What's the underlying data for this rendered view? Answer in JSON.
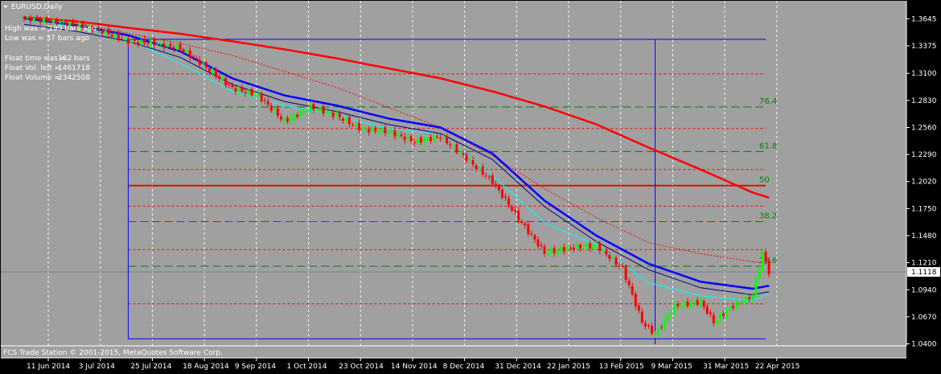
{
  "window": {
    "title": "EURUSD,Daily"
  },
  "info": {
    "high_line": "High was = 199 bars ago",
    "low_line": "Low was = 37 bars ago",
    "float_time_label": "Float time was =",
    "float_time_value": "162 bars",
    "float_vol_label": "Float Vol. left =",
    "float_vol_value": "1461718",
    "float_volume_label": "Float Volume =",
    "float_volume_value": "2342508"
  },
  "footer": "FCS Trade Station © 2001-2015, MetaQuotes Software Corp.",
  "colors": {
    "background": "#000000",
    "plot_bg": "#a0a0a0",
    "ma_fast": "#0000ff",
    "ma_slow": "#ff0000",
    "candle_up": "#00ff00",
    "candle_down": "#ff0000",
    "fib_line": "#008000",
    "float_line": "#ff0000",
    "box_line": "#0000ff"
  },
  "chart_data": {
    "type": "candlestick",
    "symbol": "EURUSD",
    "timeframe": "Daily",
    "y_ticks": [
      "1.3645",
      "1.3375",
      "1.3100",
      "1.2830",
      "1.2560",
      "1.2290",
      "1.2020",
      "1.1750",
      "1.1480",
      "1.1210",
      "1.0940",
      "1.0670",
      "1.0400"
    ],
    "y_tick_values": [
      1.3645,
      1.3375,
      1.31,
      1.283,
      1.256,
      1.229,
      1.202,
      1.175,
      1.148,
      1.121,
      1.094,
      1.067,
      1.04
    ],
    "ylim": [
      1.038,
      1.372
    ],
    "current_price": "1.1118",
    "current_price_value": 1.1118,
    "x_ticks": [
      "11 Jun 2014",
      "3 Jul 2014",
      "25 Jul 2014",
      "18 Aug 2014",
      "9 Sep 2014",
      "1 Oct 2014",
      "23 Oct 2014",
      "14 Nov 2014",
      "8 Dec 2014",
      "31 Dec 2014",
      "22 Jan 2015",
      "13 Feb 2015",
      "9 Mar 2015",
      "31 Mar 2015",
      "22 Apr 2015"
    ],
    "x_tick_bar_index": [
      0,
      16,
      32,
      48,
      64,
      80,
      96,
      112,
      128,
      144,
      160,
      176,
      192,
      208,
      224
    ],
    "fib_levels": [
      {
        "label": "76.4",
        "value": 1.2765
      },
      {
        "label": "61.8",
        "value": 1.232
      },
      {
        "label": "50",
        "value": 1.198
      },
      {
        "label": "38.2",
        "value": 1.162
      },
      {
        "label": "23.6",
        "value": 1.1175
      }
    ],
    "range_high": 1.344,
    "range_low": 1.045,
    "mid_line": 1.198,
    "float_levels": [
      1.3095,
      1.255,
      1.214,
      1.1775,
      1.134,
      1.08
    ],
    "box_start_bar": 32,
    "box_end_bar": 228,
    "vline_bar": 194,
    "ma_slow_points": [
      [
        0,
        1.366
      ],
      [
        16,
        1.362
      ],
      [
        32,
        1.3555
      ],
      [
        48,
        1.3495
      ],
      [
        64,
        1.342
      ],
      [
        80,
        1.334
      ],
      [
        96,
        1.325
      ],
      [
        112,
        1.315
      ],
      [
        128,
        1.305
      ],
      [
        144,
        1.292
      ],
      [
        160,
        1.277
      ],
      [
        176,
        1.259
      ],
      [
        192,
        1.236
      ],
      [
        208,
        1.214
      ],
      [
        224,
        1.191
      ],
      [
        229,
        1.186
      ]
    ],
    "ma_mid_points": [
      [
        0,
        1.367
      ],
      [
        16,
        1.36
      ],
      [
        32,
        1.35
      ],
      [
        48,
        1.34
      ],
      [
        64,
        1.328
      ],
      [
        80,
        1.312
      ],
      [
        96,
        1.296
      ],
      [
        112,
        1.276
      ],
      [
        128,
        1.256
      ],
      [
        144,
        1.228
      ],
      [
        160,
        1.195
      ],
      [
        176,
        1.166
      ],
      [
        192,
        1.141
      ],
      [
        208,
        1.13
      ],
      [
        224,
        1.122
      ],
      [
        229,
        1.12
      ]
    ],
    "ma_fast_points": [
      [
        0,
        1.365
      ],
      [
        16,
        1.358
      ],
      [
        32,
        1.348
      ],
      [
        48,
        1.332
      ],
      [
        64,
        1.305
      ],
      [
        80,
        1.288
      ],
      [
        96,
        1.278
      ],
      [
        112,
        1.265
      ],
      [
        128,
        1.256
      ],
      [
        144,
        1.23
      ],
      [
        160,
        1.183
      ],
      [
        176,
        1.148
      ],
      [
        192,
        1.12
      ],
      [
        208,
        1.102
      ],
      [
        224,
        1.095
      ],
      [
        229,
        1.098
      ]
    ],
    "ma_thin_points": [
      [
        0,
        1.364
      ],
      [
        16,
        1.356
      ],
      [
        32,
        1.344
      ],
      [
        48,
        1.32
      ],
      [
        64,
        1.292
      ],
      [
        80,
        1.278
      ],
      [
        96,
        1.268
      ],
      [
        112,
        1.255
      ],
      [
        128,
        1.25
      ],
      [
        144,
        1.208
      ],
      [
        160,
        1.161
      ],
      [
        176,
        1.139
      ],
      [
        192,
        1.101
      ],
      [
        208,
        1.088
      ],
      [
        224,
        1.083
      ],
      [
        229,
        1.09
      ]
    ],
    "close_path": [
      [
        0,
        1.365
      ],
      [
        8,
        1.362
      ],
      [
        16,
        1.358
      ],
      [
        24,
        1.352
      ],
      [
        32,
        1.342
      ],
      [
        40,
        1.34
      ],
      [
        48,
        1.335
      ],
      [
        56,
        1.316
      ],
      [
        64,
        1.295
      ],
      [
        72,
        1.288
      ],
      [
        80,
        1.262
      ],
      [
        88,
        1.276
      ],
      [
        96,
        1.268
      ],
      [
        104,
        1.254
      ],
      [
        112,
        1.252
      ],
      [
        120,
        1.242
      ],
      [
        128,
        1.247
      ],
      [
        136,
        1.225
      ],
      [
        144,
        1.202
      ],
      [
        152,
        1.165
      ],
      [
        160,
        1.131
      ],
      [
        168,
        1.136
      ],
      [
        176,
        1.138
      ],
      [
        184,
        1.115
      ],
      [
        190,
        1.062
      ],
      [
        194,
        1.049
      ],
      [
        200,
        1.078
      ],
      [
        208,
        1.082
      ],
      [
        212,
        1.062
      ],
      [
        218,
        1.078
      ],
      [
        224,
        1.088
      ],
      [
        227,
        1.131
      ],
      [
        229,
        1.1118
      ]
    ]
  }
}
